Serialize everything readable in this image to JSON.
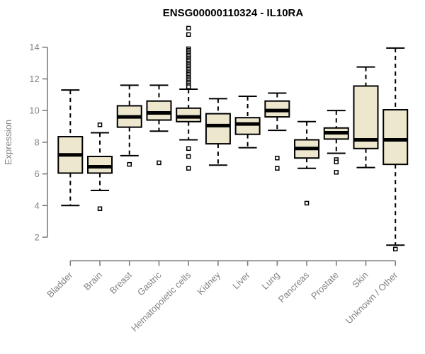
{
  "title": "ENSG00000110324 - IL10RA",
  "chart_data": {
    "type": "boxplot",
    "title": "ENSG00000110324 - IL10RA",
    "xlabel": "",
    "ylabel": "Expression",
    "yticks": [
      2,
      4,
      6,
      8,
      10,
      12,
      14
    ],
    "ylim": [
      1.0,
      15.4
    ],
    "grid": false,
    "legend": "none",
    "categories": [
      "Bladder",
      "Brain",
      "Breast",
      "Gastric",
      "Hematopoietic cells",
      "Kidney",
      "Liver",
      "Lung",
      "Pancreas",
      "Prostate",
      "Skin",
      "Unknown / Other"
    ],
    "boxes": [
      {
        "category": "Bladder",
        "whisker_low": 4.0,
        "q1": 6.05,
        "median": 7.2,
        "q3": 8.35,
        "whisker_high": 11.3,
        "outliers": []
      },
      {
        "category": "Brain",
        "whisker_low": 4.95,
        "q1": 6.05,
        "median": 6.45,
        "q3": 7.1,
        "whisker_high": 8.6,
        "outliers": [
          9.1,
          3.8
        ]
      },
      {
        "category": "Breast",
        "whisker_low": 7.15,
        "q1": 8.95,
        "median": 9.6,
        "q3": 10.3,
        "whisker_high": 11.6,
        "outliers": [
          6.6
        ]
      },
      {
        "category": "Gastric",
        "whisker_low": 8.7,
        "q1": 9.4,
        "median": 9.85,
        "q3": 10.6,
        "whisker_high": 11.6,
        "outliers": [
          6.7
        ]
      },
      {
        "category": "Hematopoietic cells",
        "whisker_low": 8.15,
        "q1": 9.3,
        "median": 9.6,
        "q3": 10.15,
        "whisker_high": 11.35,
        "outliers": [
          15.2,
          14.8,
          13.9,
          13.8,
          13.7,
          13.6,
          13.5,
          13.4,
          13.3,
          13.2,
          13.1,
          13.0,
          12.9,
          12.8,
          12.7,
          12.6,
          12.5,
          12.4,
          12.3,
          12.2,
          12.1,
          12.0,
          11.9,
          11.8,
          11.7,
          11.6,
          11.5,
          7.6,
          7.1,
          6.35
        ]
      },
      {
        "category": "Kidney",
        "whisker_low": 6.55,
        "q1": 7.9,
        "median": 9.05,
        "q3": 9.8,
        "whisker_high": 10.75,
        "outliers": []
      },
      {
        "category": "Liver",
        "whisker_low": 7.65,
        "q1": 8.5,
        "median": 9.15,
        "q3": 9.55,
        "whisker_high": 10.9,
        "outliers": []
      },
      {
        "category": "Lung",
        "whisker_low": 8.75,
        "q1": 9.6,
        "median": 10.0,
        "q3": 10.6,
        "whisker_high": 11.1,
        "outliers": [
          7.0,
          6.35
        ]
      },
      {
        "category": "Pancreas",
        "whisker_low": 6.35,
        "q1": 7.0,
        "median": 7.6,
        "q3": 8.15,
        "whisker_high": 9.3,
        "outliers": [
          4.15
        ]
      },
      {
        "category": "Prostate",
        "whisker_low": 7.3,
        "q1": 8.2,
        "median": 8.6,
        "q3": 8.9,
        "whisker_high": 10.0,
        "outliers": [
          6.9,
          6.75,
          6.1
        ]
      },
      {
        "category": "Skin",
        "whisker_low": 6.4,
        "q1": 7.6,
        "median": 8.15,
        "q3": 11.55,
        "whisker_high": 12.75,
        "outliers": []
      },
      {
        "category": "Unknown / Other",
        "whisker_low": 1.5,
        "q1": 6.6,
        "median": 8.15,
        "q3": 10.05,
        "whisker_high": 13.95,
        "outliers": [
          1.25
        ]
      }
    ],
    "colors": {
      "box_fill": "#EDE7CE",
      "box_border": "#000000",
      "median": "#000000",
      "whisker": "#000000",
      "outlier_stroke": "#000000",
      "outlier_fill": "#ffffff",
      "axis": "#7e7e7e",
      "tick_label": "#838383",
      "title": "#000000",
      "background": "#ffffff"
    }
  }
}
